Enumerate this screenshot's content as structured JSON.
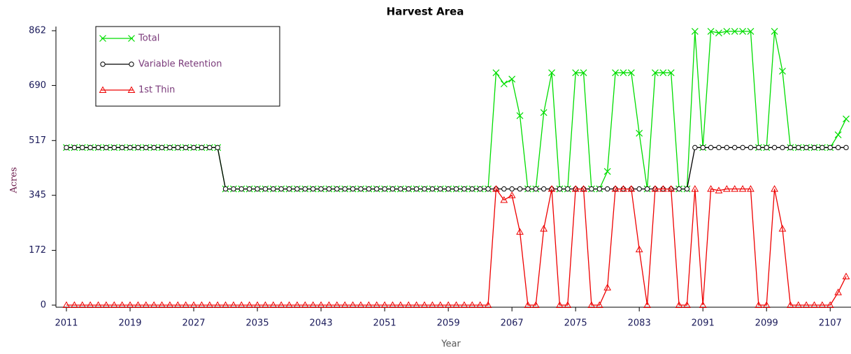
{
  "chart_data": {
    "type": "line",
    "title": "Harvest Area",
    "x_label": "Year",
    "y_label": "Acres",
    "x": [
      2011,
      2012,
      2013,
      2014,
      2015,
      2016,
      2017,
      2018,
      2019,
      2020,
      2021,
      2022,
      2023,
      2024,
      2025,
      2026,
      2027,
      2028,
      2029,
      2030,
      2031,
      2032,
      2033,
      2034,
      2035,
      2036,
      2037,
      2038,
      2039,
      2040,
      2041,
      2042,
      2043,
      2044,
      2045,
      2046,
      2047,
      2048,
      2049,
      2050,
      2051,
      2052,
      2053,
      2054,
      2055,
      2056,
      2057,
      2058,
      2059,
      2060,
      2061,
      2062,
      2063,
      2064,
      2065,
      2066,
      2067,
      2068,
      2069,
      2070,
      2071,
      2072,
      2073,
      2074,
      2075,
      2076,
      2077,
      2078,
      2079,
      2080,
      2081,
      2082,
      2083,
      2084,
      2085,
      2086,
      2087,
      2088,
      2089,
      2090,
      2091,
      2092,
      2093,
      2094,
      2095,
      2096,
      2097,
      2098,
      2099,
      2100,
      2101,
      2102,
      2103,
      2104,
      2105,
      2106,
      2107,
      2108,
      2109
    ],
    "series": [
      {
        "name": "Total",
        "color": "#00dd00",
        "marker": "x",
        "values": [
          495,
          495,
          495,
          495,
          495,
          495,
          495,
          495,
          495,
          495,
          495,
          495,
          495,
          495,
          495,
          495,
          495,
          495,
          495,
          495,
          365,
          365,
          365,
          365,
          365,
          365,
          365,
          365,
          365,
          365,
          365,
          365,
          365,
          365,
          365,
          365,
          365,
          365,
          365,
          365,
          365,
          365,
          365,
          365,
          365,
          365,
          365,
          365,
          365,
          365,
          365,
          365,
          365,
          365,
          730,
          695,
          710,
          595,
          365,
          365,
          605,
          730,
          365,
          365,
          730,
          730,
          365,
          365,
          420,
          730,
          730,
          730,
          540,
          365,
          730,
          730,
          730,
          365,
          365,
          860,
          495,
          860,
          855,
          860,
          860,
          860,
          860,
          495,
          495,
          860,
          735,
          495,
          495,
          495,
          495,
          495,
          495,
          535,
          585
        ]
      },
      {
        "name": "Variable Retention",
        "color": "#000000",
        "marker": "circle",
        "values": [
          495,
          495,
          495,
          495,
          495,
          495,
          495,
          495,
          495,
          495,
          495,
          495,
          495,
          495,
          495,
          495,
          495,
          495,
          495,
          495,
          365,
          365,
          365,
          365,
          365,
          365,
          365,
          365,
          365,
          365,
          365,
          365,
          365,
          365,
          365,
          365,
          365,
          365,
          365,
          365,
          365,
          365,
          365,
          365,
          365,
          365,
          365,
          365,
          365,
          365,
          365,
          365,
          365,
          365,
          365,
          365,
          365,
          365,
          365,
          365,
          365,
          365,
          365,
          365,
          365,
          365,
          365,
          365,
          365,
          365,
          365,
          365,
          365,
          365,
          365,
          365,
          365,
          365,
          365,
          495,
          495,
          495,
          495,
          495,
          495,
          495,
          495,
          495,
          495,
          495,
          495,
          495,
          495,
          495,
          495,
          495,
          495,
          495,
          495
        ]
      },
      {
        "name": "1st Thin",
        "color": "#ee0000",
        "marker": "triangle",
        "values": [
          0,
          0,
          0,
          0,
          0,
          0,
          0,
          0,
          0,
          0,
          0,
          0,
          0,
          0,
          0,
          0,
          0,
          0,
          0,
          0,
          0,
          0,
          0,
          0,
          0,
          0,
          0,
          0,
          0,
          0,
          0,
          0,
          0,
          0,
          0,
          0,
          0,
          0,
          0,
          0,
          0,
          0,
          0,
          0,
          0,
          0,
          0,
          0,
          0,
          0,
          0,
          0,
          0,
          0,
          365,
          330,
          345,
          230,
          0,
          0,
          240,
          365,
          0,
          0,
          365,
          365,
          0,
          0,
          55,
          365,
          365,
          365,
          175,
          0,
          365,
          365,
          365,
          0,
          0,
          365,
          0,
          365,
          360,
          365,
          365,
          365,
          365,
          0,
          0,
          365,
          240,
          0,
          0,
          0,
          0,
          0,
          0,
          40,
          90
        ]
      }
    ],
    "xlim": [
      2011,
      2109
    ],
    "xticks": [
      2011,
      2019,
      2027,
      2035,
      2043,
      2051,
      2059,
      2067,
      2075,
      2083,
      2091,
      2099,
      2107
    ],
    "ylim": [
      0,
      862
    ],
    "yticks": [
      0,
      172,
      345,
      517,
      690,
      862
    ],
    "grid": false,
    "legend": "upper left"
  }
}
